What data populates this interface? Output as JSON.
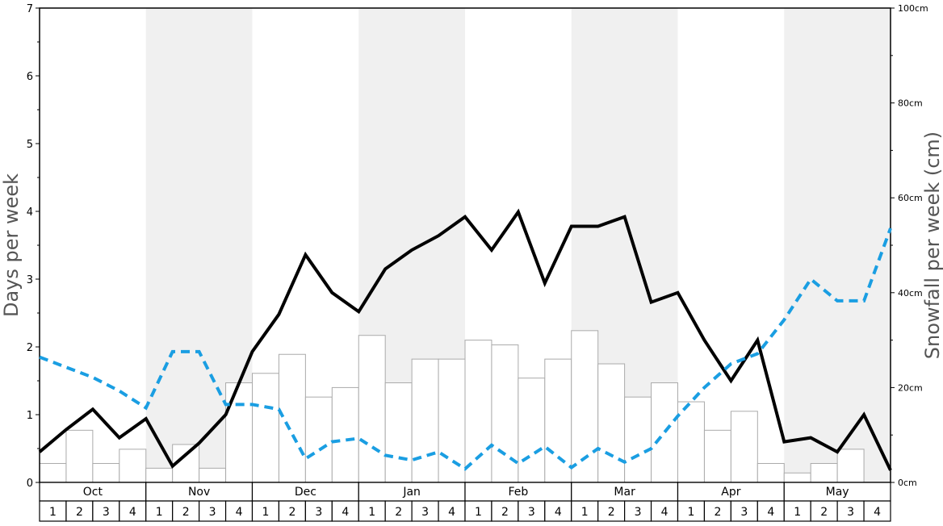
{
  "chart_data": {
    "type": "bar",
    "title": "",
    "ylabel_left": "Days per week",
    "ylabel_right": "Snowfall per week (cm)",
    "ylim_left": [
      0,
      7
    ],
    "ylim_right": [
      0,
      100
    ],
    "left_ticks": [
      "0",
      "1",
      "2",
      "3",
      "4",
      "5",
      "6",
      "7"
    ],
    "right_ticks": [
      "0cm",
      "20cm",
      "40cm",
      "60cm",
      "80cm",
      "100cm"
    ],
    "months": [
      "Oct",
      "Nov",
      "Dec",
      "Jan",
      "Feb",
      "Mar",
      "Apr",
      "May"
    ],
    "week_labels": [
      "1",
      "2",
      "3",
      "4"
    ],
    "series": [
      {
        "kind": "bar",
        "axis": "right",
        "unit": "cm",
        "color": "#ffffff",
        "stroke": "#aaaaaa",
        "values": [
          4,
          11,
          4,
          7,
          3,
          8,
          3,
          21,
          23,
          27,
          18,
          20,
          31,
          21,
          26,
          26,
          30,
          29,
          22,
          26,
          32,
          25,
          18,
          21,
          17,
          11,
          15,
          4,
          2,
          4,
          7,
          0
        ]
      },
      {
        "kind": "line",
        "axis": "left",
        "color": "#000000",
        "style": "solid",
        "values": [
          0.45,
          0.78,
          1.08,
          0.66,
          0.94,
          0.24,
          0.58,
          1.0,
          1.93,
          2.48,
          3.36,
          2.8,
          2.52,
          3.15,
          3.43,
          3.64,
          3.92,
          3.43,
          3.99,
          2.94,
          3.78,
          3.78,
          3.92,
          2.66,
          2.8,
          2.1,
          1.5,
          2.1,
          0.6,
          0.66,
          0.45,
          1.0,
          0.18
        ]
      },
      {
        "kind": "line",
        "axis": "left",
        "color": "#1a9ee2",
        "style": "dashed",
        "values": [
          1.85,
          1.7,
          1.55,
          1.35,
          1.1,
          1.93,
          1.93,
          1.15,
          1.15,
          1.08,
          0.35,
          0.6,
          0.65,
          0.4,
          0.33,
          0.45,
          0.2,
          0.55,
          0.28,
          0.53,
          0.22,
          0.5,
          0.3,
          0.5,
          0.98,
          1.4,
          1.75,
          1.9,
          2.4,
          3.0,
          2.68,
          2.68,
          3.75
        ]
      }
    ],
    "grid": false,
    "legend": "none"
  }
}
